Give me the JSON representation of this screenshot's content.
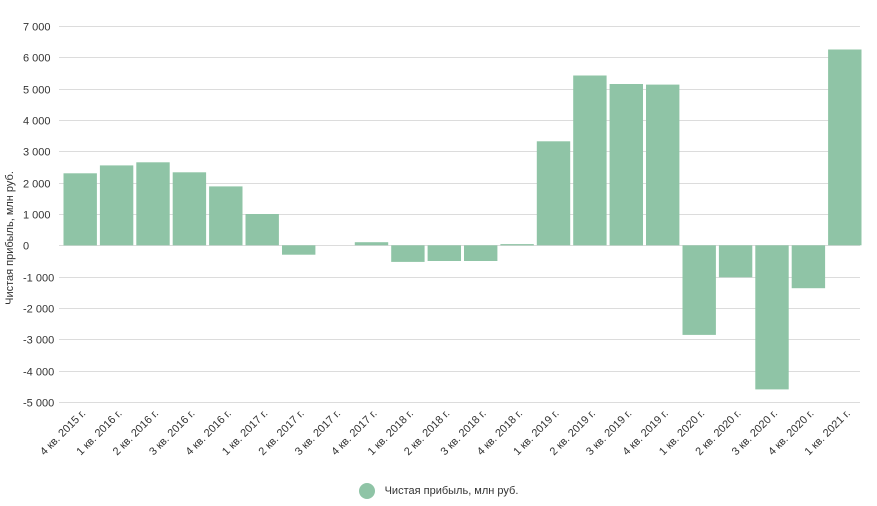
{
  "chart_data": {
    "type": "bar",
    "ylabel": "Чистая прибыль, млн руб.",
    "xlabel": "",
    "ylim": [
      -5000,
      7000
    ],
    "yticks": [
      7000,
      6000,
      5000,
      4000,
      3000,
      2000,
      1000,
      0,
      -1000,
      -2000,
      -3000,
      -4000,
      -5000
    ],
    "ytick_labels": [
      "7 000",
      "6 000",
      "5 000",
      "4 000",
      "3 000",
      "2 000",
      "1 000",
      "0",
      "-1 000",
      "-2 000",
      "-3 000",
      "-4 000",
      "-5 000"
    ],
    "grid": true,
    "categories": [
      "4 кв. 2015 г.",
      "1 кв. 2016 г.",
      "2 кв. 2016 г.",
      "3 кв. 2016 г.",
      "4 кв. 2016 г.",
      "1 кв. 2017 г.",
      "2 кв. 2017 г.",
      "3 кв. 2017 г.",
      "4 кв. 2017 г.",
      "1 кв. 2018 г.",
      "2 кв. 2018 г.",
      "3 кв. 2018 г.",
      "4 кв. 2018 г.",
      "1 кв. 2019 г.",
      "2 кв. 2019 г.",
      "3 кв. 2019 г.",
      "4 кв. 2019 г.",
      "1 кв. 2020 г.",
      "2 кв. 2020 г.",
      "3 кв. 2020 г.",
      "4 кв. 2020 г.",
      "1 кв. 2021 г."
    ],
    "series": [
      {
        "name": "Чистая прибыль, млн руб.",
        "color": "#8fc4a6",
        "values": [
          2300,
          2550,
          2650,
          2330,
          1880,
          1000,
          -300,
          0,
          100,
          -530,
          -500,
          -500,
          40,
          3320,
          5420,
          5150,
          5130,
          -2860,
          -1020,
          -4600,
          -1370,
          6250
        ]
      }
    ],
    "legend_position": "bottom-center"
  },
  "legend": {
    "label": "Чистая прибыль, млн руб.",
    "color": "#8fc4a6"
  }
}
